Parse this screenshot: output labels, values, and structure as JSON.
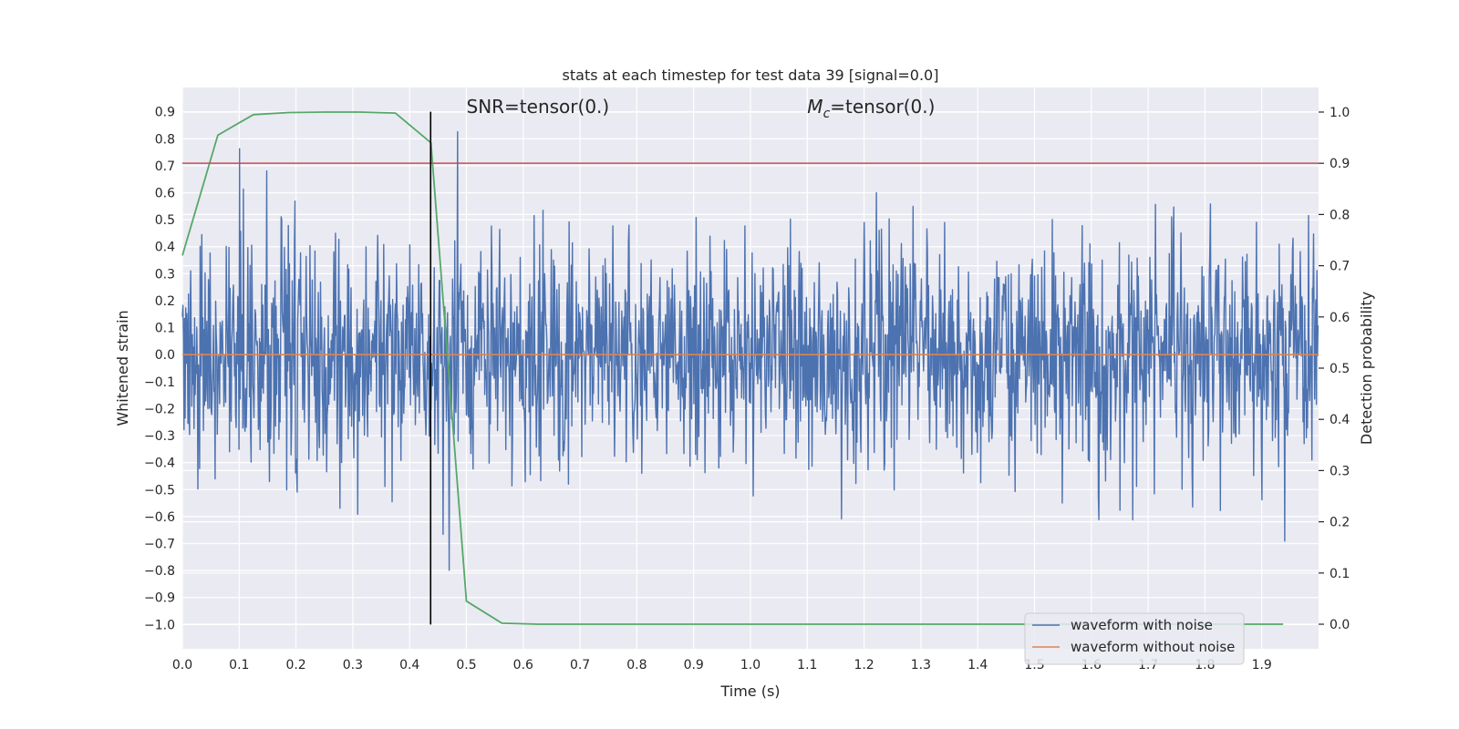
{
  "chart_data": {
    "type": "line",
    "title": "stats at each timestep for test data 39 [signal=0.0]",
    "xlabel": "Time (s)",
    "ylabel": "Whitened strain",
    "y2label": "Detection probability",
    "xlim": [
      0.0,
      2.0
    ],
    "ylim": [
      -1.09,
      0.99
    ],
    "y2lim": [
      -0.048,
      1.048
    ],
    "x_ticks": [
      0.0,
      0.1,
      0.2,
      0.3,
      0.4,
      0.5,
      0.6,
      0.7,
      0.8,
      0.9,
      1.0,
      1.1,
      1.2,
      1.3,
      1.4,
      1.5,
      1.6,
      1.7,
      1.8,
      1.9
    ],
    "x_tick_labels": [
      "0.0",
      "0.1",
      "0.2",
      "0.3",
      "0.4",
      "0.5",
      "0.6",
      "0.7",
      "0.8",
      "0.9",
      "1.0",
      "1.1",
      "1.2",
      "1.3",
      "1.4",
      "1.5",
      "1.6",
      "1.7",
      "1.8",
      "1.9"
    ],
    "y_ticks": [
      0.9,
      0.8,
      0.7,
      0.6,
      0.5,
      0.4,
      0.3,
      0.2,
      0.1,
      0.0,
      -0.1,
      -0.2,
      -0.3,
      -0.4,
      -0.5,
      -0.6,
      -0.7,
      -0.8,
      -0.9,
      -1.0
    ],
    "y_tick_labels": [
      "0.9",
      "0.8",
      "0.7",
      "0.6",
      "0.5",
      "0.4",
      "0.3",
      "0.2",
      "0.1",
      "0.0",
      "−0.1",
      "−0.2",
      "−0.3",
      "−0.4",
      "−0.5",
      "−0.6",
      "−0.7",
      "−0.8",
      "−0.9",
      "−1.0"
    ],
    "y2_ticks": [
      1.0,
      0.9,
      0.8,
      0.7,
      0.6,
      0.5,
      0.4,
      0.3,
      0.2,
      0.1,
      0.0
    ],
    "y2_tick_labels": [
      "1.0",
      "0.9",
      "0.8",
      "0.7",
      "0.6",
      "0.5",
      "0.4",
      "0.3",
      "0.2",
      "0.1",
      "0.0"
    ],
    "grid": true,
    "legend_placement": "lower-right",
    "series": [
      {
        "name": "waveform with noise",
        "color": "#4c72b0",
        "description": "dense noisy whitened strain, roughly within [-1.0, 0.9]",
        "samples": 2048
      },
      {
        "name": "waveform without noise",
        "color": "#dd8452",
        "x": [
          0.0,
          2.0
        ],
        "y": [
          0.0,
          0.0
        ]
      },
      {
        "color": "#55a868",
        "axis": "right",
        "x": [
          0.0,
          0.0625,
          0.125,
          0.1875,
          0.25,
          0.3125,
          0.375,
          0.4375,
          0.5,
          0.5625,
          0.625,
          0.6875,
          0.75,
          0.8125,
          0.875,
          0.9375,
          1.0,
          1.0625,
          1.125,
          1.1875,
          1.25,
          1.3125,
          1.375,
          1.4375,
          1.5,
          1.5625,
          1.625,
          1.6875,
          1.75,
          1.8125,
          1.875,
          1.9375
        ],
        "y": [
          0.72,
          0.955,
          0.995,
          0.999,
          1.0,
          1.0,
          0.998,
          0.94,
          0.045,
          0.002,
          0.0,
          0.0,
          0.0,
          0.0,
          0.0,
          0.0,
          0.0,
          0.0,
          0.0,
          0.0,
          0.0,
          0.0,
          0.0,
          0.0,
          0.0,
          0.0,
          0.0,
          0.0,
          0.0,
          0.0,
          0.0,
          0.0
        ]
      }
    ],
    "threshold": {
      "axis": "right",
      "value": 0.9,
      "color": "#c44e52"
    },
    "vline": {
      "x": 0.437,
      "ymin": -1.0,
      "ymax": 0.9,
      "color": "#000000"
    },
    "annotations": [
      {
        "x": 0.5,
        "text": "SNR=tensor(0.)",
        "kind": "snr"
      },
      {
        "x": 1.1,
        "symbol": "M",
        "subscript": "c",
        "text": "=tensor(0.)",
        "kind": "mc"
      }
    ]
  }
}
